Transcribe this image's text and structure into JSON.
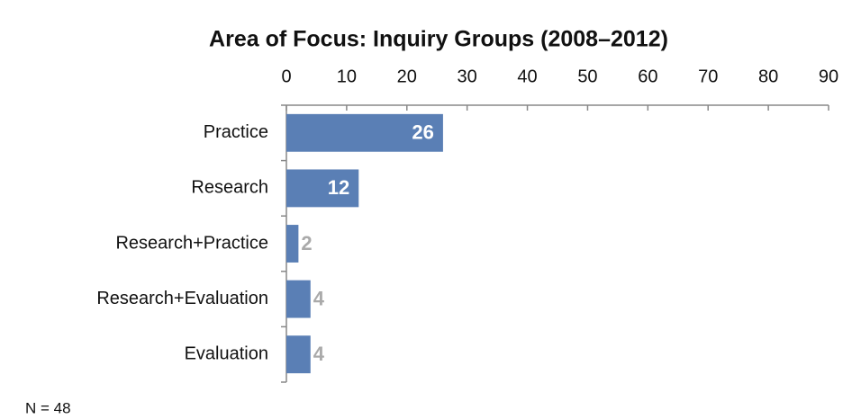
{
  "chart_data": {
    "type": "bar",
    "orientation": "horizontal",
    "title": "Area of Focus: Inquiry Groups (2008–2012)",
    "categories": [
      "Practice",
      "Research",
      "Research+Practice",
      "Research+Evaluation",
      "Evaluation"
    ],
    "values": [
      26,
      12,
      2,
      4,
      4
    ],
    "color": "#5a7fb5",
    "xlim": [
      0,
      90
    ],
    "xticks": [
      0,
      10,
      20,
      30,
      40,
      50,
      60,
      70,
      80,
      90
    ],
    "grid": false,
    "note": "N = 48"
  }
}
